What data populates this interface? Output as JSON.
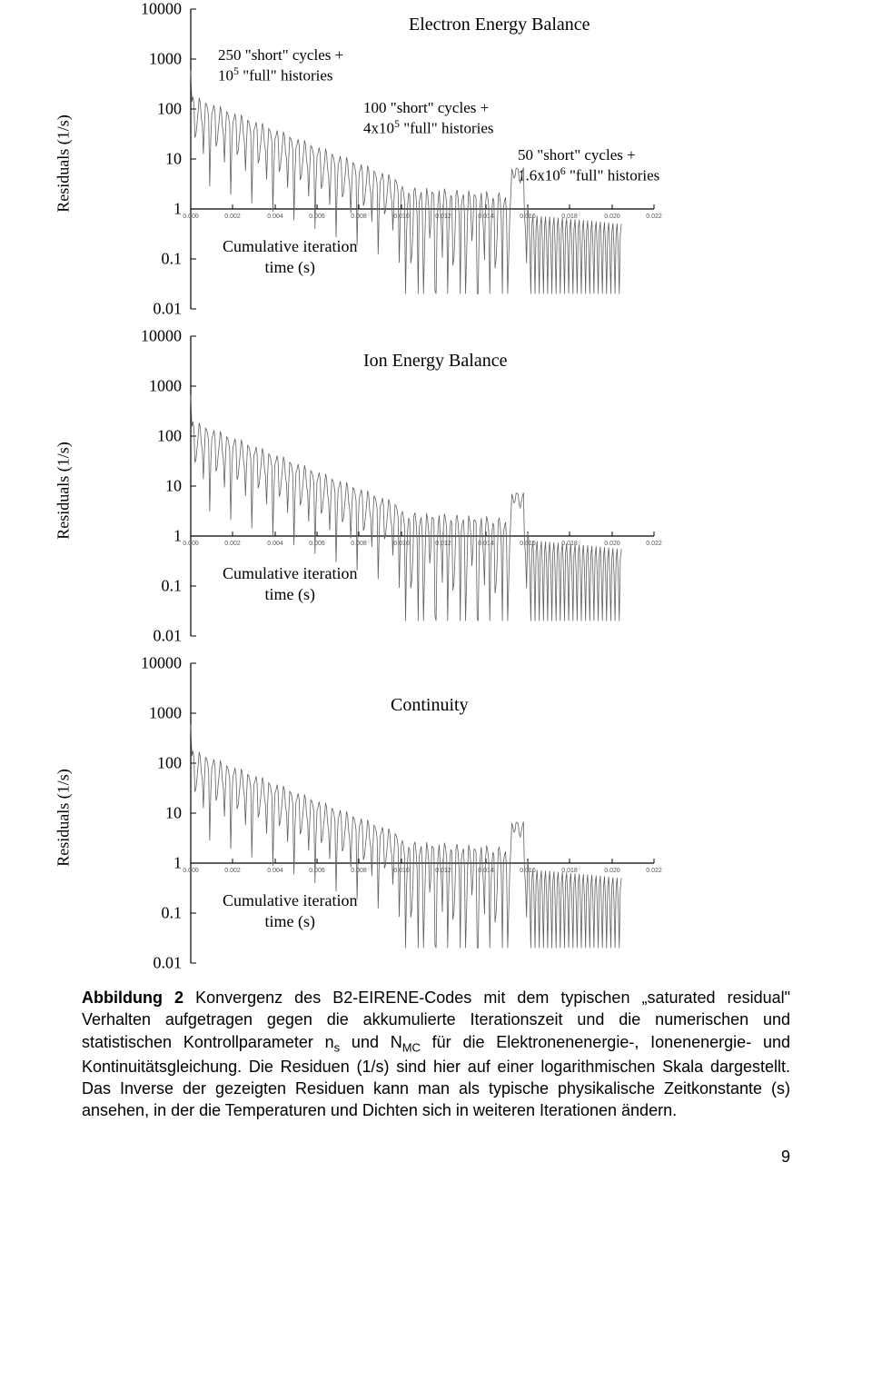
{
  "figure": {
    "background_color": "#ffffff",
    "text_color": "#000000",
    "line_color": "#606060",
    "axis_color": "#000000",
    "yticks": [
      "10000",
      "1000",
      "100",
      "10",
      "1",
      "0.1",
      "0.01"
    ],
    "ylabel": "Residuals (1/s)",
    "xlabel": "Cumulative iteration time (s)",
    "xlabel_line1": "Cumulative iteration",
    "xlabel_line2": "time (s)",
    "xtick_labels": [
      "0.000",
      "0.002",
      "0.004",
      "0.006",
      "0.008",
      "0.010",
      "0.012",
      "0.014",
      "0.016",
      "0.018",
      "0.020",
      "0.022"
    ],
    "xlim": [
      0,
      0.022
    ],
    "ylim_log": [
      0.01,
      10000
    ],
    "panels": [
      {
        "title": "Electron Energy Balance"
      },
      {
        "title": "Ion Energy Balance"
      },
      {
        "title": "Continuity"
      }
    ],
    "annotations": {
      "a1_l1": "250 \"short\" cycles +",
      "a1_l2_pre": "10",
      "a1_l2_sup": "5",
      "a1_l2_post": " \"full\" histories",
      "a2_l1": "100 \"short\" cycles +",
      "a2_l2_pre": "4x10",
      "a2_l2_sup": "5",
      "a2_l2_post": " \"full\" histories",
      "a3_l1": "50 \"short\" cycles +",
      "a3_l2_pre": "1.6x10",
      "a3_l2_sup": "6",
      "a3_l2_post": " \"full\" histories"
    }
  },
  "caption": {
    "lead": "Abbildung 2",
    "body_1": " Konvergenz des B2-EIRENE-Codes mit dem typischen „saturated residual\" Verhalten aufgetragen gegen die akkumulierte Iterationszeit und die numerischen und statistischen Kontrollparameter n",
    "sub1": "s",
    "body_2": " und N",
    "sub2": "MC",
    "body_3": " für die Elektronenenergie-, Ionenenergie- und Kontinuitätsgleichung. Die Residuen (1/s) sind hier auf einer logarithmischen Skala dargestellt. Das Inverse der gezeigten Residuen kann man als typische physikalische Zeitkonstante (s) ansehen, in der die Temperaturen und Dichten sich in weiteren Iterationen ändern."
  },
  "page_number": "9"
}
